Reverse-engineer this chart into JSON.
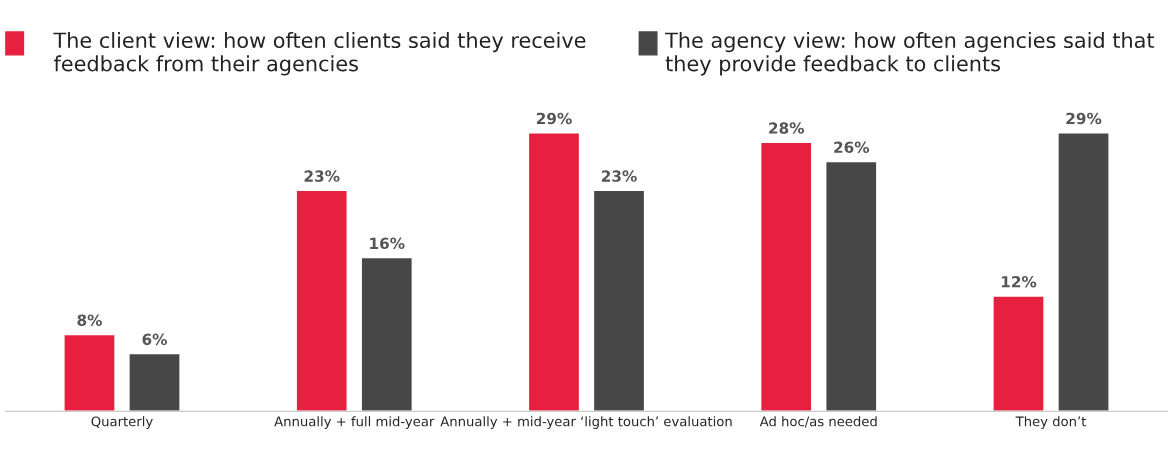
{
  "chart_data": {
    "type": "bar",
    "categories": [
      "Quarterly",
      "Annually + full mid-year",
      "Annually + mid-year ‘light touch’ evaluation",
      "Ad hoc/as needed",
      "They don’t"
    ],
    "series": [
      {
        "name": "The client view: how often clients said they receive feedback from their agencies",
        "color": "#e8203f",
        "values": [
          8,
          23,
          29,
          28,
          12
        ],
        "value_labels": [
          "8%",
          "23%",
          "29%",
          "28%",
          "12%"
        ]
      },
      {
        "name": "The agency view: how often agencies said that they provide feedback to clients",
        "color": "#474747",
        "values": [
          6,
          16,
          23,
          26,
          29
        ],
        "value_labels": [
          "6%",
          "16%",
          "23%",
          "26%",
          "29%"
        ]
      }
    ],
    "legend": "top",
    "grid": false,
    "tick_labels": "x"
  }
}
